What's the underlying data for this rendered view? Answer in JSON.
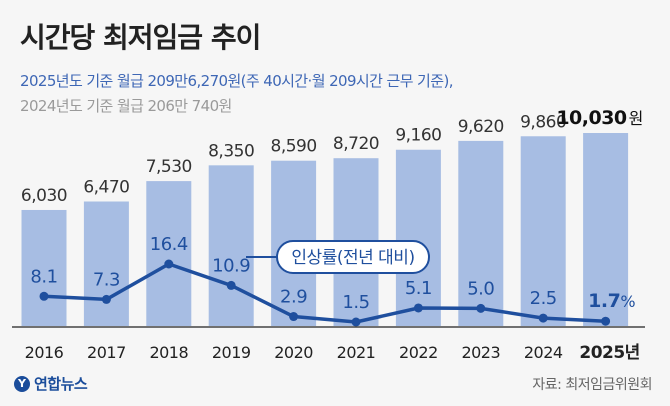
{
  "header": {
    "title": "시간당 최저임금 추이",
    "subtitle_current": "2025년도 기준 월급 209만6,270원(주 40시간·월 209시간 근무 기준),",
    "subtitle_previous": "2024년도 기준 월급 206만 740원"
  },
  "footer": {
    "logo_text": "연합뉴스",
    "logo_mark": "Y",
    "source": "자료: 최저임금위원회"
  },
  "colors": {
    "bar": "#a7bde3",
    "line": "#1f4f9e",
    "bar_label": "#333333",
    "rate_label": "#1f4f9e"
  },
  "chart_data": {
    "type": "bar",
    "categories": [
      "2016",
      "2017",
      "2018",
      "2019",
      "2020",
      "2021",
      "2022",
      "2023",
      "2024",
      "2025년"
    ],
    "series": [
      {
        "name": "시간당 최저임금(원)",
        "type": "bar",
        "values": [
          6030,
          6470,
          7530,
          8350,
          8590,
          8720,
          9160,
          9620,
          9860,
          10030
        ],
        "labels": [
          "6,030",
          "6,470",
          "7,530",
          "8,350",
          "8,590",
          "8,720",
          "9,160",
          "9,620",
          "9,860",
          "10,030"
        ],
        "last_unit": "원"
      },
      {
        "name": "인상률(전년 대비)",
        "type": "line",
        "values": [
          8.1,
          7.3,
          16.4,
          10.9,
          2.9,
          1.5,
          5.1,
          5.0,
          2.5,
          1.7
        ],
        "labels": [
          "8.1",
          "7.3",
          "16.4",
          "10.9",
          "2.9",
          "1.5",
          "5.1",
          "5.0",
          "2.5",
          "1.7"
        ],
        "last_unit": "%"
      }
    ],
    "legend_label": "인상률(전년 대비)"
  }
}
